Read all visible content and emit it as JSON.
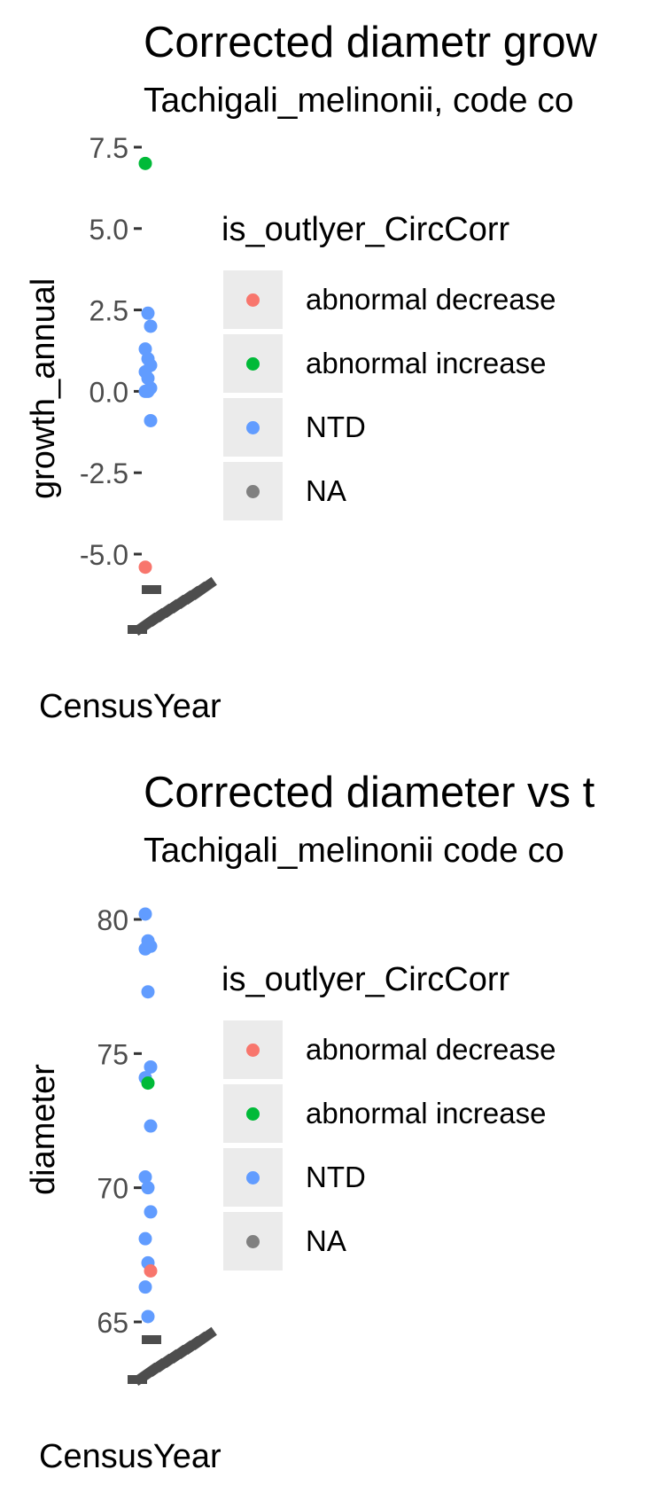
{
  "chart_data": [
    {
      "type": "scatter",
      "title": "Corrected diametr grow",
      "subtitle": "Tachigali_melinonii, code co",
      "xlabel": "CensusYear",
      "ylabel": "growth_annual",
      "yticks": [
        "7.5",
        "5.0",
        "2.5",
        "0.0",
        "-2.5",
        "-5.0"
      ],
      "ytick_values": [
        7.5,
        5.0,
        2.5,
        0.0,
        -2.5,
        -5.0
      ],
      "ylim": [
        -6.3,
        7.8
      ],
      "legend": {
        "title": "is_outlyer_CircCorr",
        "position": "right",
        "entries": [
          {
            "label": "abnormal decrease",
            "color": "#f8766d"
          },
          {
            "label": "abnormal increase",
            "color": "#00ba38"
          },
          {
            "label": "NTD",
            "color": "#619cff"
          },
          {
            "label": "NA",
            "color": "#808080"
          }
        ]
      },
      "points": [
        {
          "y": 7.0,
          "group": "abnormal increase"
        },
        {
          "y": 2.4,
          "group": "NTD"
        },
        {
          "y": 2.0,
          "group": "NTD"
        },
        {
          "y": 1.3,
          "group": "NTD"
        },
        {
          "y": 1.0,
          "group": "NTD"
        },
        {
          "y": 0.8,
          "group": "NTD"
        },
        {
          "y": 0.6,
          "group": "NTD"
        },
        {
          "y": 0.4,
          "group": "NTD"
        },
        {
          "y": 0.1,
          "group": "NTD"
        },
        {
          "y": 0.0,
          "group": "NTD"
        },
        {
          "y": 0.0,
          "group": "NTD"
        },
        {
          "y": -0.9,
          "group": "NTD"
        },
        {
          "y": -5.4,
          "group": "abnormal decrease"
        }
      ]
    },
    {
      "type": "scatter",
      "title": "Corrected diameter vs t",
      "subtitle": "Tachigali_melinonii code co",
      "xlabel": "CensusYear",
      "ylabel": "diameter",
      "yticks": [
        "80",
        "75",
        "70",
        "65"
      ],
      "ytick_values": [
        80,
        75,
        70,
        65
      ],
      "ylim": [
        64.0,
        80.7
      ],
      "legend": {
        "title": "is_outlyer_CircCorr",
        "position": "right",
        "entries": [
          {
            "label": "abnormal decrease",
            "color": "#f8766d"
          },
          {
            "label": "abnormal increase",
            "color": "#00ba38"
          },
          {
            "label": "NTD",
            "color": "#619cff"
          },
          {
            "label": "NA",
            "color": "#808080"
          }
        ]
      },
      "points": [
        {
          "y": 80.2,
          "group": "NTD"
        },
        {
          "y": 79.2,
          "group": "NTD"
        },
        {
          "y": 79.0,
          "group": "NTD"
        },
        {
          "y": 78.9,
          "group": "NTD"
        },
        {
          "y": 77.3,
          "group": "NTD"
        },
        {
          "y": 74.5,
          "group": "NTD"
        },
        {
          "y": 74.1,
          "group": "NTD"
        },
        {
          "y": 73.9,
          "group": "abnormal increase"
        },
        {
          "y": 72.3,
          "group": "NTD"
        },
        {
          "y": 70.4,
          "group": "NTD"
        },
        {
          "y": 70.0,
          "group": "NTD"
        },
        {
          "y": 69.1,
          "group": "NTD"
        },
        {
          "y": 68.1,
          "group": "NTD"
        },
        {
          "y": 67.2,
          "group": "NTD"
        },
        {
          "y": 66.9,
          "group": "abnormal decrease"
        },
        {
          "y": 66.3,
          "group": "NTD"
        },
        {
          "y": 65.2,
          "group": "NTD"
        }
      ]
    }
  ]
}
